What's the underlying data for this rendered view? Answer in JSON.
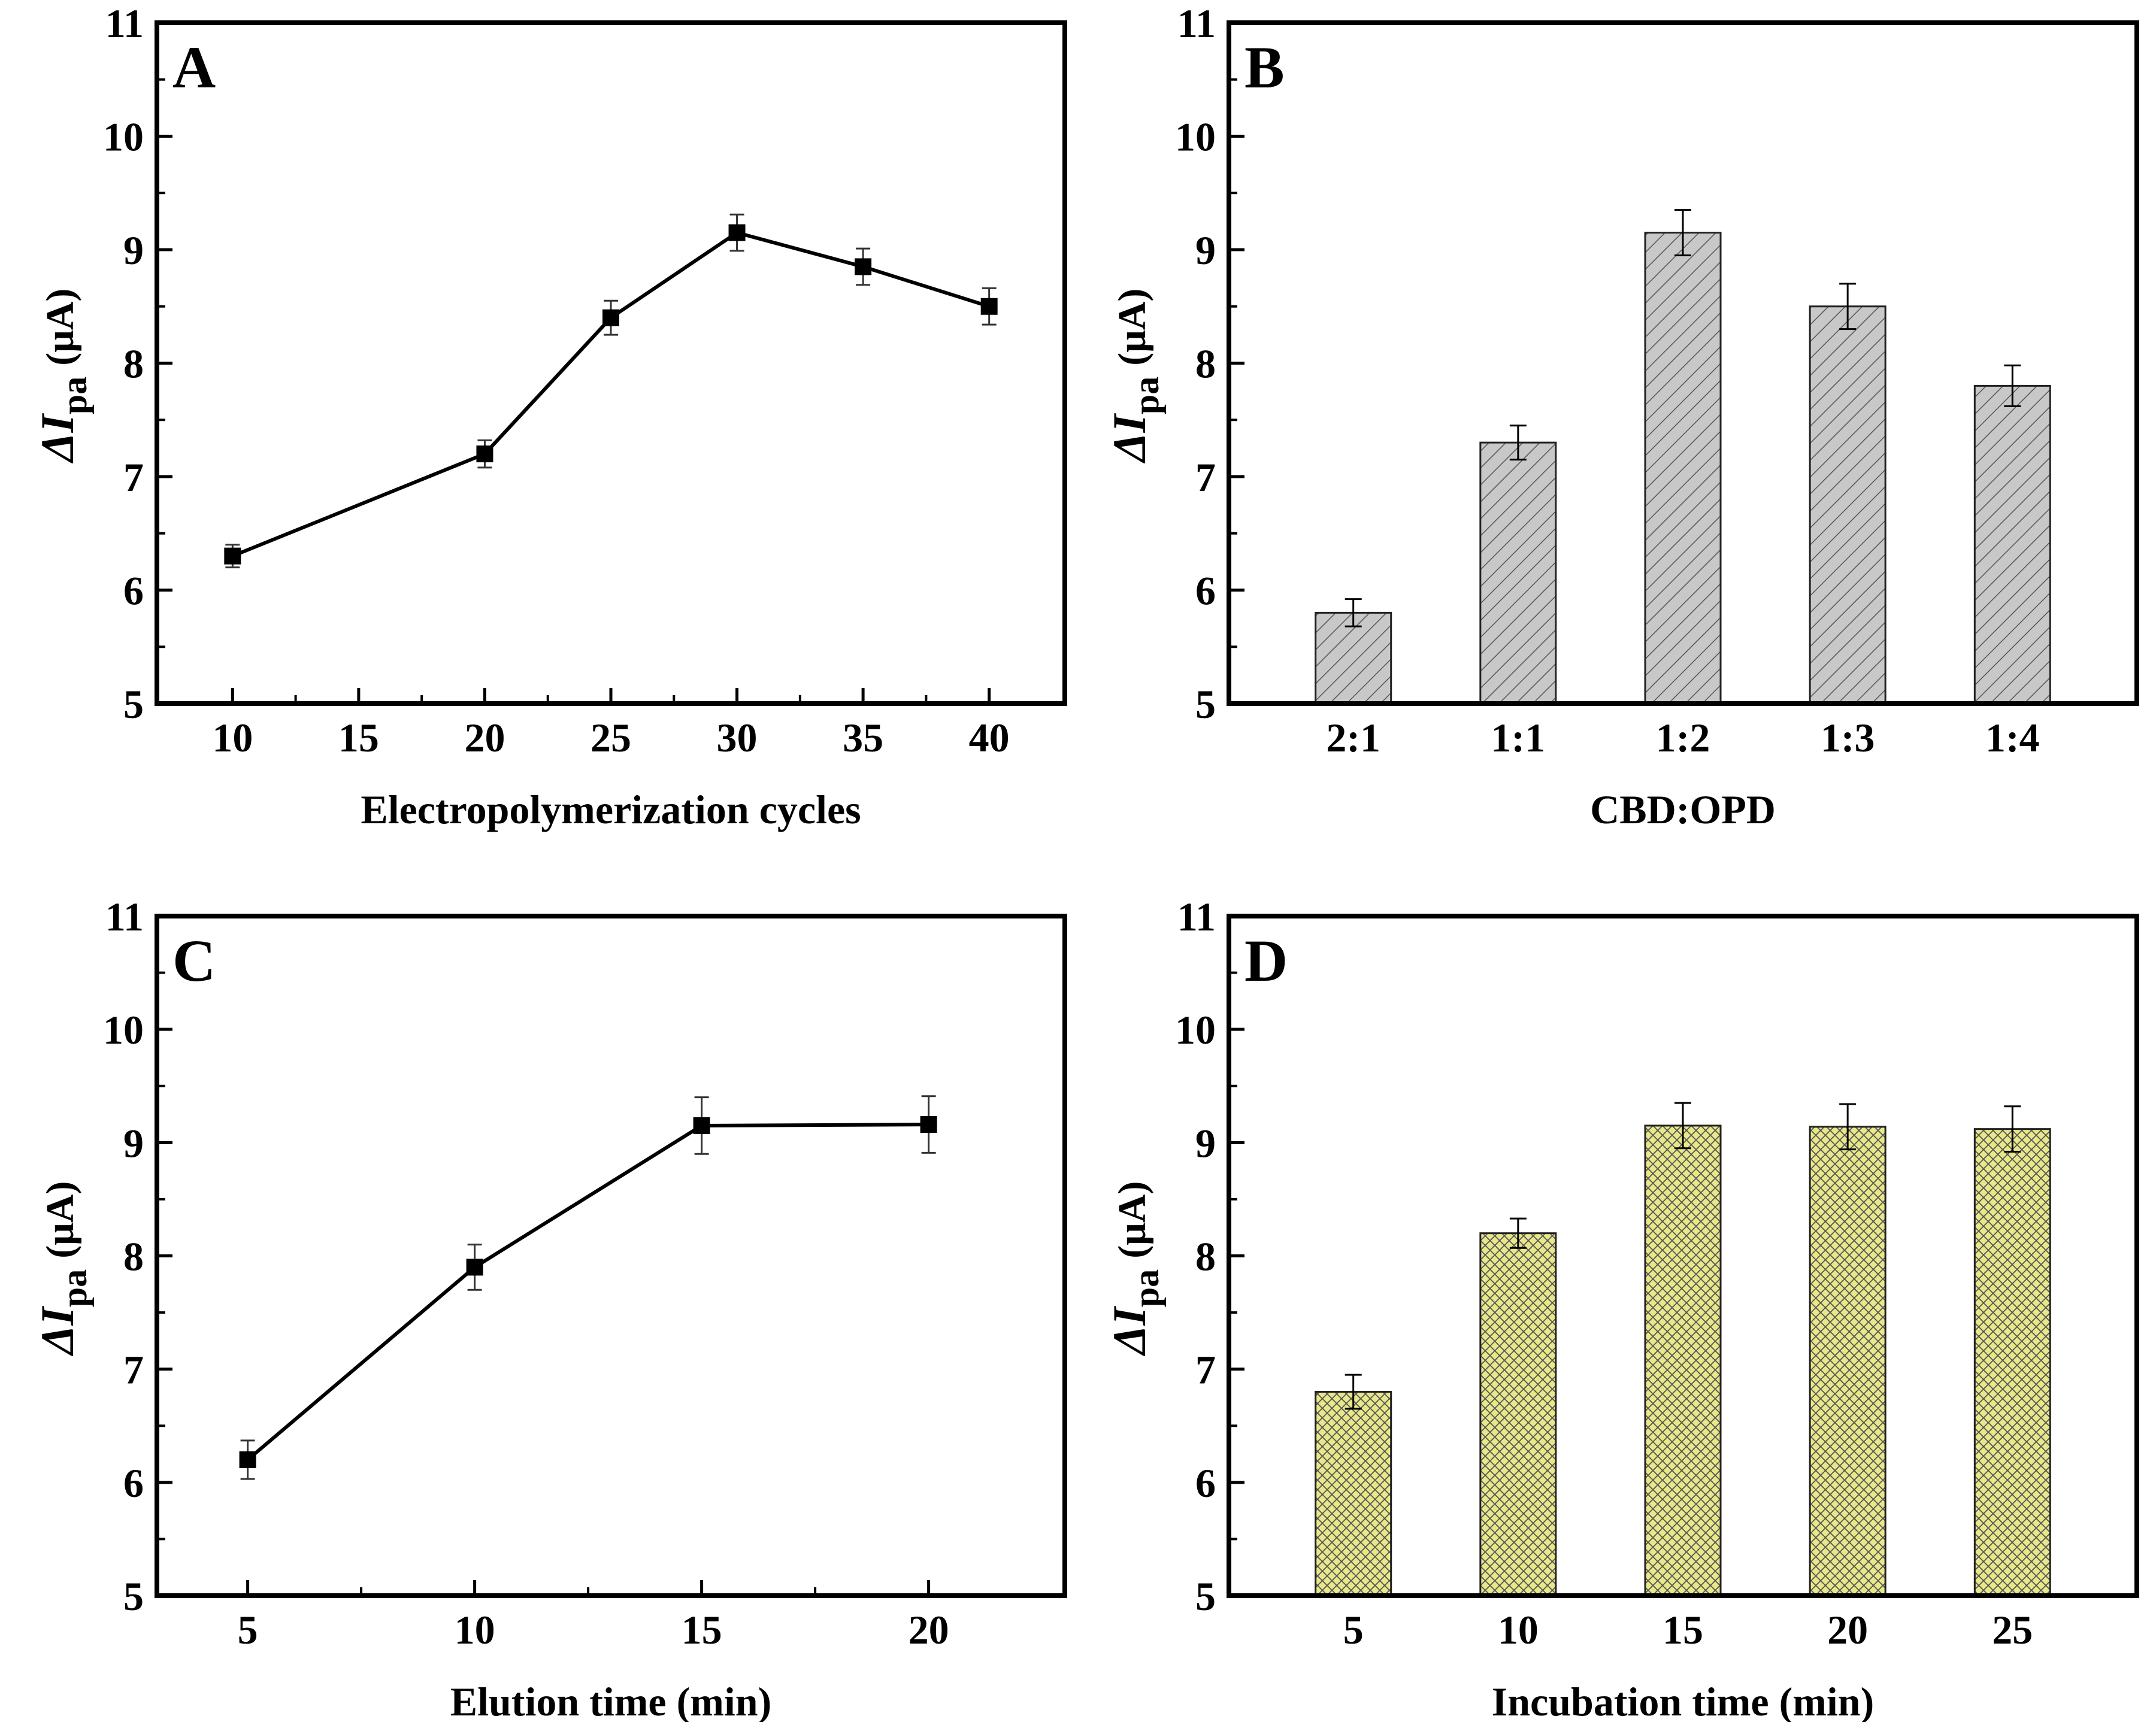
{
  "chart_data": [
    {
      "panel": "A",
      "type": "line",
      "x": [
        10,
        20,
        25,
        30,
        35,
        40
      ],
      "values": [
        6.3,
        7.2,
        8.4,
        9.15,
        8.85,
        8.5
      ],
      "errors": [
        0.1,
        0.12,
        0.15,
        0.16,
        0.16,
        0.16
      ],
      "xlim": [
        7,
        43
      ],
      "ylim": [
        5,
        11
      ],
      "xticks": [
        "10",
        "15",
        "20",
        "25",
        "30",
        "35",
        "40"
      ],
      "yticks": [
        "5",
        "6",
        "7",
        "8",
        "9",
        "10",
        "11"
      ],
      "xlabel": "Electropolymerization cycles",
      "ylabel": "ΔI",
      "ylabel_sub": "pa",
      "ylabel_unit": "(μA)"
    },
    {
      "panel": "B",
      "type": "bar",
      "categories": [
        "2:1",
        "1:1",
        "1:2",
        "1:3",
        "1:4"
      ],
      "values": [
        5.8,
        7.3,
        9.15,
        8.5,
        7.8
      ],
      "errors": [
        0.12,
        0.15,
        0.2,
        0.2,
        0.18
      ],
      "ylim": [
        5,
        11
      ],
      "yticks": [
        "5",
        "6",
        "7",
        "8",
        "9",
        "10",
        "11"
      ],
      "xlabel": "CBD:OPD",
      "ylabel": "ΔI",
      "ylabel_sub": "pa",
      "ylabel_unit": "(μA)",
      "bar_color": "#c8c8c8",
      "pattern": "diagonal-hatch"
    },
    {
      "panel": "C",
      "type": "line",
      "x": [
        5,
        10,
        15,
        20
      ],
      "values": [
        6.2,
        7.9,
        9.15,
        9.16
      ],
      "errors": [
        0.17,
        0.2,
        0.25,
        0.25
      ],
      "xlim": [
        3,
        23
      ],
      "ylim": [
        5,
        11
      ],
      "xticks": [
        "5",
        "10",
        "15",
        "20"
      ],
      "yticks": [
        "5",
        "6",
        "7",
        "8",
        "9",
        "10",
        "11"
      ],
      "xlabel": "Elution time (min)",
      "ylabel": "ΔI",
      "ylabel_sub": "pa",
      "ylabel_unit": "(μA)"
    },
    {
      "panel": "D",
      "type": "bar",
      "categories": [
        "5",
        "10",
        "15",
        "20",
        "25"
      ],
      "values": [
        6.8,
        8.2,
        9.15,
        9.14,
        9.12
      ],
      "errors": [
        0.15,
        0.13,
        0.2,
        0.2,
        0.2
      ],
      "ylim": [
        5,
        11
      ],
      "yticks": [
        "5",
        "6",
        "7",
        "8",
        "9",
        "10",
        "11"
      ],
      "xlabel": "Incubation time (min)",
      "ylabel": "ΔI",
      "ylabel_sub": "pa",
      "ylabel_unit": "(μA)",
      "bar_color": "#e8e88a",
      "pattern": "cross-hatch"
    }
  ]
}
